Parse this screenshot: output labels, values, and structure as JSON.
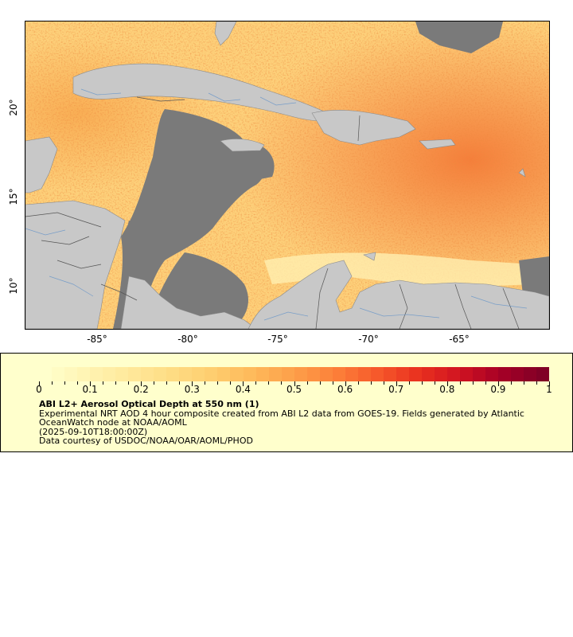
{
  "map": {
    "lon_labels": [
      "-85°",
      "-80°",
      "-75°",
      "-70°",
      "-65°"
    ],
    "lat_labels": [
      "10°",
      "15°",
      "20°"
    ],
    "colors": {
      "land": "#c8c8c8",
      "cloud": "#7a7a7a",
      "border": "#555555",
      "river": "#6a96c8"
    }
  },
  "legend": {
    "tick_labels": [
      "0",
      "0.1",
      "0.2",
      "0.3",
      "0.4",
      "0.5",
      "0.6",
      "0.7",
      "0.8",
      "0.9",
      "1"
    ],
    "title": "ABI L2+ Aerosol Optical Depth at 550 nm (1)",
    "line1": "Experimental NRT AOD 4 hour composite created from ABI L2 data from GOES-19. Fields generated by Atlantic",
    "line2": "OceanWatch node at NOAA/AOML",
    "line3": "(2025-09-10T18:00:00Z)",
    "line4": "Data courtesy of USDOC/NOAA/OAR/AOML/PHOD",
    "colorbar_colors": [
      "#ffffcc",
      "#fff4b3",
      "#ffe99b",
      "#fedd85",
      "#fece70",
      "#feb95a",
      "#fd9f4a",
      "#fc8039",
      "#f6592b",
      "#e9311f",
      "#d01321",
      "#a50026",
      "#800026"
    ]
  }
}
